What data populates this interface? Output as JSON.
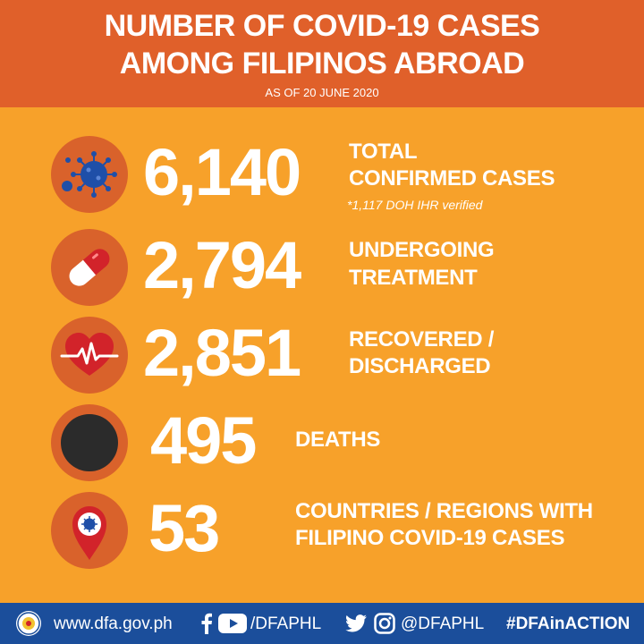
{
  "header": {
    "title_line1": "NUMBER OF COVID-19 CASES",
    "title_line2": "AMONG FILIPINOS ABROAD",
    "subtitle": "AS OF 20 JUNE 2020"
  },
  "colors": {
    "background": "#f7a12a",
    "header_band": "#e0602a",
    "icon_circle": "#d9622b",
    "footer_band": "#1b4e9b",
    "virus_blue": "#1f4fa8",
    "pin_red": "#d2232a"
  },
  "stats": [
    {
      "icon": "virus-icon",
      "value": "6,140",
      "label_line1": "TOTAL",
      "label_line2": "CONFIRMED CASES",
      "note": "*1,117 DOH IHR verified"
    },
    {
      "icon": "pill-capsule-icon",
      "value": "2,794",
      "label_line1": "UNDERGOING",
      "label_line2": "TREATMENT"
    },
    {
      "icon": "heartbeat-icon",
      "value": "2,851",
      "label_line1": "RECOVERED /",
      "label_line2": "DISCHARGED"
    },
    {
      "icon": "black-circle-icon",
      "value": "495",
      "label_line1": "DEATHS"
    },
    {
      "icon": "location-pin-virus-icon",
      "value": "53",
      "label_line1": "COUNTRIES / REGIONS WITH",
      "label_line2": "FILIPINO COVID-19 CASES"
    }
  ],
  "footer": {
    "website": "www.dfa.gov.ph",
    "facebook_youtube_handle": "/DFAPHL",
    "twitter_instagram_handle": "@DFAPHL",
    "hashtag": "#DFAinACTION"
  }
}
